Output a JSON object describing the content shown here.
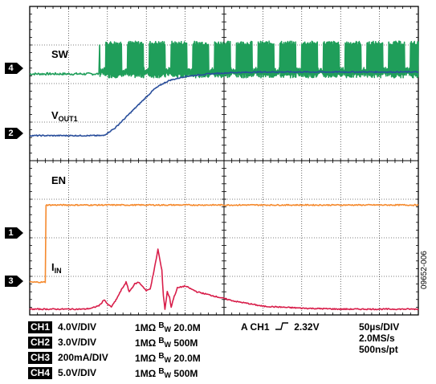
{
  "chart_data": {
    "type": "line",
    "title": "",
    "x_unit": "µs",
    "x_range": [
      0,
      500
    ],
    "grid": {
      "columns": 10,
      "rows": 8,
      "minor_ticks_per_div": 5
    },
    "series": [
      {
        "name": "SW",
        "channel": "4",
        "color": "#1f9e5a",
        "units_per_div": 5.0,
        "unit": "V",
        "baseline_div": 6.25,
        "x": [
          0,
          40,
          90,
          95,
          100,
          110,
          120,
          150,
          200,
          250,
          300,
          350,
          400,
          450,
          500
        ],
        "y": [
          0,
          0,
          0,
          0,
          0,
          0,
          0,
          0,
          0,
          0,
          0,
          0,
          0,
          0,
          0
        ],
        "switching_from_x": 90,
        "switching_amplitude_div": 0.8
      },
      {
        "name": "VOUT1",
        "channel": "2",
        "color": "#2a4f9c",
        "units_per_div": 3.0,
        "unit": "V",
        "baseline_div": 4.65,
        "x": [
          0,
          50,
          95,
          100,
          110,
          120,
          130,
          140,
          150,
          160,
          170,
          180,
          200,
          230,
          260,
          300,
          400,
          500
        ],
        "y": [
          0,
          0,
          0,
          0.2,
          0.6,
          1.2,
          1.8,
          2.4,
          3.0,
          3.6,
          4.0,
          4.3,
          4.6,
          4.8,
          4.9,
          4.95,
          4.95,
          4.95
        ]
      },
      {
        "name": "EN",
        "channel": "1",
        "color": "#f58a2e",
        "units_per_div": 4.0,
        "unit": "V",
        "baseline_div": 0.85,
        "x": [
          0,
          20,
          21,
          22,
          500
        ],
        "y": [
          0,
          0,
          8.0,
          8.0,
          8.0
        ]
      },
      {
        "name": "IIN",
        "channel": "3",
        "color": "#d81e4a",
        "units_per_div": 0.2,
        "unit": "A",
        "baseline_div": 0.15,
        "x": [
          0,
          70,
          80,
          90,
          96,
          100,
          105,
          110,
          118,
          124,
          128,
          135,
          140,
          145,
          150,
          155,
          160,
          165,
          170,
          172,
          174,
          177,
          180,
          182,
          185,
          190,
          200,
          215,
          235,
          250,
          265,
          280,
          300,
          350,
          400,
          450,
          500
        ],
        "y": [
          0,
          0,
          0.005,
          0.02,
          0.05,
          0.025,
          0.012,
          0.04,
          0.1,
          0.14,
          0.09,
          0.13,
          0.14,
          0.12,
          0.095,
          0.105,
          0.2,
          0.31,
          0.2,
          0.07,
          0.0,
          0.09,
          0.06,
          0.01,
          0.055,
          0.11,
          0.12,
          0.09,
          0.07,
          0.055,
          0.04,
          0.03,
          0.015,
          0.005,
          0.0,
          0.0,
          0.0
        ]
      }
    ]
  },
  "labels": {
    "sw": "SW",
    "vout_main": "V",
    "vout_sub": "OUT1",
    "en": "EN",
    "iin_main": "I",
    "iin_sub": "IN"
  },
  "markers": [
    "4",
    "2",
    "1",
    "3"
  ],
  "legend": [
    {
      "ch": "CH1",
      "vdiv": "4.0V/DIV",
      "imp": "1MΩ",
      "bw_sup": "B",
      "bw_sub": "W",
      "bw": "20.0M"
    },
    {
      "ch": "CH2",
      "vdiv": "3.0V/DIV",
      "imp": "1MΩ",
      "bw_sup": "B",
      "bw_sub": "W",
      "bw": "500M"
    },
    {
      "ch": "CH3",
      "vdiv": "200mA/DIV",
      "imp": "1MΩ",
      "bw_sup": "B",
      "bw_sub": "W",
      "bw": "20.0M"
    },
    {
      "ch": "CH4",
      "vdiv": "5.0V/DIV",
      "imp": "1MΩ",
      "bw_sup": "B",
      "bw_sub": "W",
      "bw": "500M"
    }
  ],
  "trigger": {
    "source": "A  CH1",
    "slope_icon": "rising-edge-icon",
    "level": "2.32V"
  },
  "timebase": {
    "tdiv": "50µs/DIV",
    "rate": "2.0MS/s",
    "resolution": "500ns/pt"
  },
  "figure_id": "09652-006"
}
